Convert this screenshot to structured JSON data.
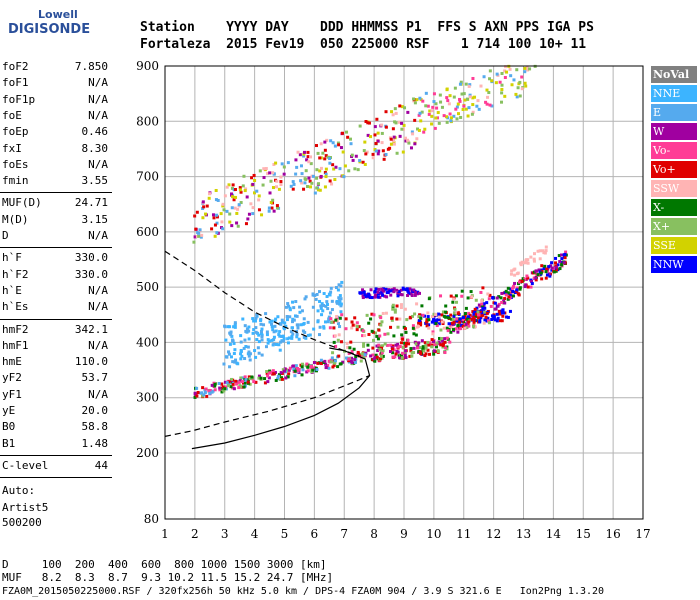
{
  "logo": {
    "brand": "Lowell",
    "product": "DIGISONDE"
  },
  "header": {
    "labels": "Station    YYYY DAY    DDD HHMMSS P1  FFS S AXN PPS IGA PS",
    "values": "Fortaleza  2015 Fev19  050 225000 RSF    1 714 100 10+ 11"
  },
  "params": {
    "g1": [
      {
        "k": "foF2",
        "v": "7.850"
      },
      {
        "k": "foF1",
        "v": "N/A"
      },
      {
        "k": "foF1p",
        "v": "N/A"
      },
      {
        "k": "foE",
        "v": "N/A"
      },
      {
        "k": "foEp",
        "v": "0.46"
      },
      {
        "k": "fxI",
        "v": "8.30"
      },
      {
        "k": "foEs",
        "v": "N/A"
      },
      {
        "k": "fmin",
        "v": "3.55"
      }
    ],
    "g2": [
      {
        "k": "MUF(D)",
        "v": "24.71"
      },
      {
        "k": "M(D)",
        "v": "3.15"
      },
      {
        "k": "D",
        "v": "N/A"
      }
    ],
    "g3": [
      {
        "k": "h`F",
        "v": "330.0"
      },
      {
        "k": "h`F2",
        "v": "330.0"
      },
      {
        "k": "h`E",
        "v": "N/A"
      },
      {
        "k": "h`Es",
        "v": "N/A"
      }
    ],
    "g4": [
      {
        "k": "hmF2",
        "v": "342.1"
      },
      {
        "k": "hmF1",
        "v": "N/A"
      },
      {
        "k": "hmE",
        "v": "110.0"
      },
      {
        "k": "yF2",
        "v": "53.7"
      },
      {
        "k": "yF1",
        "v": "N/A"
      },
      {
        "k": "yE",
        "v": "20.0"
      },
      {
        "k": "B0",
        "v": "58.8"
      },
      {
        "k": "B1",
        "v": "1.48"
      }
    ],
    "g5": [
      {
        "k": "C-level",
        "v": "44"
      }
    ]
  },
  "side": {
    "auto": "Auto:",
    "artist": "Artist5",
    "code": "500200"
  },
  "footer": {
    "d_row": "D     100  200  400  600  800 1000 1500 3000 [km]",
    "muf_row": "MUF   8.2  8.3  8.7  9.3 10.2 11.5 15.2 24.7 [MHz]",
    "file_row": "FZA0M_2015050225000.RSF / 320fx256h 50 kHz 5.0 km / DPS-4 FZA0M 904 / 3.9 S 321.6 E   Ion2Png 1.3.20"
  },
  "chart_data": {
    "type": "scatter",
    "xlim": [
      1,
      17
    ],
    "ylim": [
      80,
      900
    ],
    "x_ticks": [
      1,
      2,
      3,
      4,
      5,
      6,
      7,
      8,
      9,
      10,
      11,
      12,
      13,
      14,
      15,
      16,
      17
    ],
    "y_ticks": [
      80,
      200,
      300,
      400,
      500,
      600,
      700,
      800,
      900
    ],
    "grid": true,
    "legend_position": "right",
    "legend": [
      {
        "name": "NoVal",
        "color": "#808080"
      },
      {
        "name": "NNE",
        "color": "#3cb4ff"
      },
      {
        "name": "E",
        "color": "#55aaee"
      },
      {
        "name": "W",
        "color": "#a000a0"
      },
      {
        "name": "Vo-",
        "color": "#ff3c96"
      },
      {
        "name": "Vo+",
        "color": "#e00000"
      },
      {
        "name": "SSW",
        "color": "#ffb4b4"
      },
      {
        "name": "X-",
        "color": "#007800"
      },
      {
        "name": "X+",
        "color": "#88c060"
      },
      {
        "name": "SSE",
        "color": "#d2d200"
      },
      {
        "name": "NNW",
        "color": "#0000ff"
      }
    ],
    "clusters": [
      {
        "name": "F-trace",
        "x0": 2.0,
        "y0": 308,
        "x1": 7.8,
        "y1": 378,
        "colors": [
          "#a000a0",
          "#e00000",
          "#ff3c96",
          "#007800",
          "#88c060",
          "#55aaee"
        ],
        "n": 260,
        "spread": 10
      },
      {
        "name": "F-trace-upper",
        "x0": 7.8,
        "y0": 378,
        "x1": 10.5,
        "y1": 395,
        "colors": [
          "#e00000",
          "#a000a0",
          "#007800",
          "#ff3c96",
          "#88c060"
        ],
        "n": 160,
        "spread": 14
      },
      {
        "name": "F-oblique",
        "x0": 10.5,
        "y0": 420,
        "x1": 14.5,
        "y1": 555,
        "colors": [
          "#0000ff",
          "#ff3c96",
          "#a000a0",
          "#e00000",
          "#007800"
        ],
        "n": 220,
        "spread": 12
      },
      {
        "name": "E-spread",
        "x0": 3.0,
        "y0": 390,
        "x1": 7.0,
        "y1": 470,
        "colors": [
          "#55aaee",
          "#3cb4ff"
        ],
        "n": 240,
        "spread": 40
      },
      {
        "name": "NNW-500",
        "x0": 7.5,
        "y0": 488,
        "x1": 9.5,
        "y1": 492,
        "colors": [
          "#0000ff",
          "#a000a0"
        ],
        "n": 90,
        "spread": 8
      },
      {
        "name": "NNW-440",
        "x0": 9.5,
        "y0": 440,
        "x1": 12.5,
        "y1": 450,
        "colors": [
          "#0000ff",
          "#e00000"
        ],
        "n": 120,
        "spread": 10
      },
      {
        "name": "Mid-scatter",
        "x0": 6.5,
        "y0": 410,
        "x1": 12.0,
        "y1": 470,
        "colors": [
          "#e00000",
          "#007800",
          "#ff3c96",
          "#ffb4b4",
          "#88c060"
        ],
        "n": 200,
        "spread": 35
      },
      {
        "name": "Second-hop",
        "x0": 2.0,
        "y0": 618,
        "x1": 9.5,
        "y1": 800,
        "colors": [
          "#e00000",
          "#d2d200",
          "#ffb4b4",
          "#a000a0",
          "#88c060",
          "#55aaee"
        ],
        "n": 320,
        "spread": 45
      },
      {
        "name": "Third-hop",
        "x0": 9.5,
        "y0": 810,
        "x1": 13.5,
        "y1": 890,
        "colors": [
          "#ff3c96",
          "#d2d200",
          "#55aaee",
          "#88c060",
          "#ffb4b4"
        ],
        "n": 140,
        "spread": 35
      },
      {
        "name": "SSW-oblique",
        "x0": 12.5,
        "y0": 520,
        "x1": 13.8,
        "y1": 570,
        "colors": [
          "#ffb4b4"
        ],
        "n": 30,
        "spread": 8
      }
    ],
    "profile": {
      "solid": [
        [
          1.9,
          208
        ],
        [
          3,
          218
        ],
        [
          4,
          232
        ],
        [
          5,
          248
        ],
        [
          6,
          268
        ],
        [
          6.8,
          290
        ],
        [
          7.5,
          318
        ],
        [
          7.85,
          340
        ],
        [
          7.7,
          370
        ],
        [
          7,
          385
        ],
        [
          6.5,
          390
        ]
      ],
      "dashed_lower": [
        [
          1.0,
          230
        ],
        [
          1.9,
          240
        ],
        [
          3,
          256
        ],
        [
          4.5,
          276
        ],
        [
          6,
          300
        ],
        [
          7.4,
          330
        ],
        [
          7.85,
          340
        ]
      ],
      "dashed_upper": [
        [
          1.0,
          565
        ],
        [
          2,
          530
        ],
        [
          3,
          490
        ],
        [
          4,
          455
        ],
        [
          5,
          428
        ],
        [
          6,
          405
        ],
        [
          7,
          385
        ],
        [
          7.5,
          376
        ]
      ]
    }
  }
}
